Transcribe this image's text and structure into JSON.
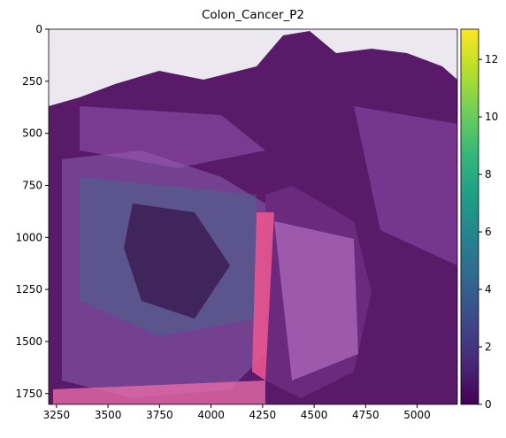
{
  "chart_data": {
    "type": "image",
    "title": "Colon_Cancer_P2",
    "xlim": [
      3212,
      5195
    ],
    "xticks": [
      3250,
      3500,
      3750,
      4000,
      4250,
      4500,
      4750,
      5000
    ],
    "ylim": [
      1802,
      0
    ],
    "yticks": [
      0,
      250,
      500,
      750,
      1000,
      1250,
      1500,
      1750
    ],
    "colorbar": {
      "colormap": "viridis",
      "clim": [
        0,
        13.05
      ],
      "ticks": [
        0,
        2,
        4,
        6,
        8,
        10,
        12
      ]
    }
  }
}
